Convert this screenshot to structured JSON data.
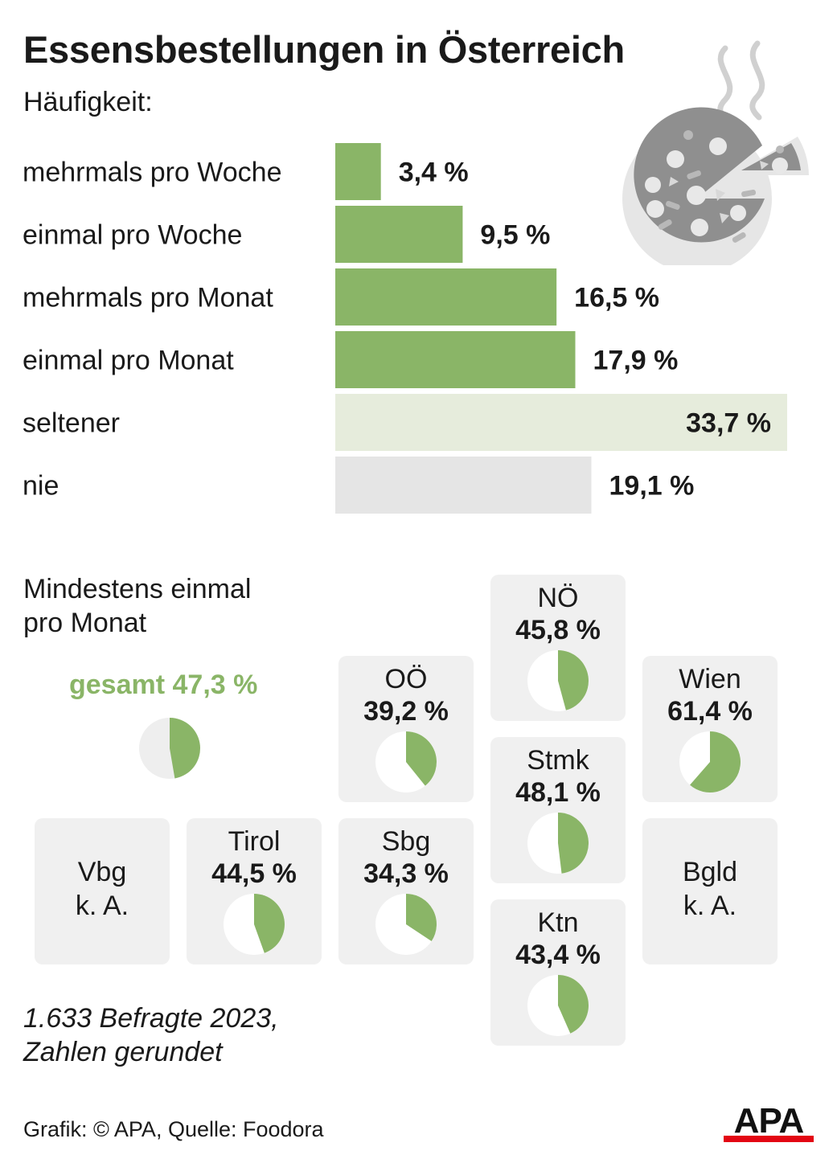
{
  "title": "Essensbestellungen in Österreich",
  "subtitle": "Häufigkeit:",
  "chart_data": [
    {
      "type": "bar",
      "categories": [
        "mehrmals pro Woche",
        "einmal pro Woche",
        "mehrmals pro Monat",
        "einmal pro Monat",
        "seltener",
        "nie"
      ],
      "values": [
        3.4,
        9.5,
        16.5,
        17.9,
        33.7,
        19.1
      ],
      "value_labels": [
        "3,4 %",
        "9,5 %",
        "16,5 %",
        "17,9 %",
        "33,7 %",
        "19,1 %"
      ],
      "colors": [
        "#8ab567",
        "#8ab567",
        "#8ab567",
        "#8ab567",
        "#e6ecdc",
        "#e5e5e5"
      ],
      "title": "Häufigkeit:",
      "xlim": [
        0,
        33.7
      ]
    },
    {
      "type": "pie",
      "title": "Mindestens einmal pro Monat",
      "total": {
        "label": "gesamt 47,3 %",
        "value": 47.3
      },
      "regions": [
        {
          "name": "NÖ",
          "value": 45.8,
          "label": "45,8 %"
        },
        {
          "name": "OÖ",
          "value": 39.2,
          "label": "39,2 %"
        },
        {
          "name": "Wien",
          "value": 61.4,
          "label": "61,4 %"
        },
        {
          "name": "Stmk",
          "value": 48.1,
          "label": "48,1 %"
        },
        {
          "name": "Vbg",
          "value": null,
          "label": "k. A."
        },
        {
          "name": "Tirol",
          "value": 44.5,
          "label": "44,5 %"
        },
        {
          "name": "Sbg",
          "value": 34.3,
          "label": "34,3 %"
        },
        {
          "name": "Bgld",
          "value": null,
          "label": "k. A."
        },
        {
          "name": "Ktn",
          "value": 43.4,
          "label": "43,4 %"
        }
      ],
      "colors": {
        "filled": "#8ab567",
        "empty_tile": "#ffffff",
        "empty_total": "#eeeeee",
        "tile_bg": "#f0f0f0"
      }
    }
  ],
  "section2": {
    "line1": "Mindestens einmal",
    "line2": "pro Monat"
  },
  "footnote": {
    "line1": "1.633 Befragte 2023,",
    "line2": "Zahlen gerundet"
  },
  "source": "Grafik: © APA, Quelle: Foodora",
  "logo": {
    "text": "APA",
    "accent": "#e30613"
  },
  "icons": {
    "illustration": "pizza-icon"
  }
}
